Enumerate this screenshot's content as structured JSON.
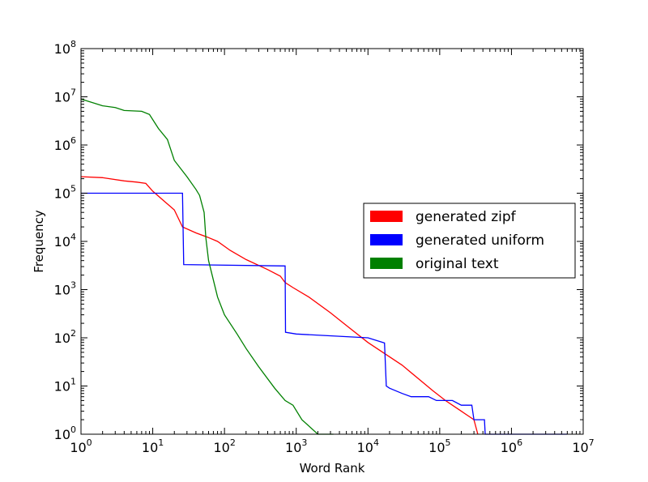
{
  "chart_data": {
    "type": "line",
    "xlabel": "Word Rank",
    "ylabel": "Frequency",
    "xscale": "log",
    "yscale": "log",
    "xlim": [
      1,
      10000000
    ],
    "ylim": [
      1,
      100000000
    ],
    "grid": false,
    "legend_placement": "center-right",
    "x_ticks": [
      {
        "base": "10",
        "exp": "0",
        "value": 1
      },
      {
        "base": "10",
        "exp": "1",
        "value": 10
      },
      {
        "base": "10",
        "exp": "2",
        "value": 100
      },
      {
        "base": "10",
        "exp": "3",
        "value": 1000
      },
      {
        "base": "10",
        "exp": "4",
        "value": 10000
      },
      {
        "base": "10",
        "exp": "5",
        "value": 100000
      },
      {
        "base": "10",
        "exp": "6",
        "value": 1000000
      },
      {
        "base": "10",
        "exp": "7",
        "value": 10000000
      }
    ],
    "y_ticks": [
      {
        "base": "10",
        "exp": "0",
        "value": 1
      },
      {
        "base": "10",
        "exp": "1",
        "value": 10
      },
      {
        "base": "10",
        "exp": "2",
        "value": 100
      },
      {
        "base": "10",
        "exp": "3",
        "value": 1000
      },
      {
        "base": "10",
        "exp": "4",
        "value": 10000
      },
      {
        "base": "10",
        "exp": "5",
        "value": 100000
      },
      {
        "base": "10",
        "exp": "6",
        "value": 1000000
      },
      {
        "base": "10",
        "exp": "7",
        "value": 10000000
      },
      {
        "base": "10",
        "exp": "8",
        "value": 100000000
      }
    ],
    "series": [
      {
        "name": "generated zipf",
        "color": "#ff0000",
        "points": [
          [
            1,
            220000
          ],
          [
            2,
            210000
          ],
          [
            4,
            180000
          ],
          [
            6,
            170000
          ],
          [
            8,
            160000
          ],
          [
            10,
            110000
          ],
          [
            15,
            65000
          ],
          [
            20,
            45000
          ],
          [
            26,
            20000
          ],
          [
            40,
            15000
          ],
          [
            60,
            12000
          ],
          [
            80,
            10000
          ],
          [
            120,
            6500
          ],
          [
            200,
            4200
          ],
          [
            400,
            2600
          ],
          [
            600,
            1900
          ],
          [
            700,
            1400
          ],
          [
            900,
            1100
          ],
          [
            1500,
            700
          ],
          [
            3000,
            330
          ],
          [
            5000,
            180
          ],
          [
            10000,
            80
          ],
          [
            30000,
            27
          ],
          [
            80000,
            8
          ],
          [
            120000,
            5
          ],
          [
            150000,
            4
          ],
          [
            200000,
            3
          ],
          [
            300000,
            2
          ],
          [
            340000,
            1
          ]
        ]
      },
      {
        "name": "generated uniform",
        "color": "#0000ff",
        "points": [
          [
            1,
            100000
          ],
          [
            26,
            100000
          ],
          [
            27,
            3300
          ],
          [
            700,
            3100
          ],
          [
            710,
            130
          ],
          [
            1000,
            120
          ],
          [
            10000,
            100
          ],
          [
            17000,
            78
          ],
          [
            18000,
            10
          ],
          [
            20000,
            9
          ],
          [
            30000,
            7
          ],
          [
            40000,
            6
          ],
          [
            70000,
            6
          ],
          [
            90000,
            5
          ],
          [
            150000,
            5
          ],
          [
            200000,
            4
          ],
          [
            280000,
            4
          ],
          [
            300000,
            2
          ],
          [
            420000,
            2
          ],
          [
            430000,
            1
          ],
          [
            6000000,
            1
          ]
        ]
      },
      {
        "name": "original text",
        "color": "#008000",
        "points": [
          [
            1,
            9000000
          ],
          [
            2,
            6500000
          ],
          [
            3,
            6000000
          ],
          [
            4,
            5200000
          ],
          [
            7,
            5000000
          ],
          [
            9,
            4300000
          ],
          [
            12,
            2200000
          ],
          [
            16,
            1300000
          ],
          [
            20,
            480000
          ],
          [
            30,
            220000
          ],
          [
            40,
            120000
          ],
          [
            45,
            90000
          ],
          [
            52,
            40000
          ],
          [
            55,
            12000
          ],
          [
            60,
            4000
          ],
          [
            80,
            700
          ],
          [
            100,
            300
          ],
          [
            150,
            120
          ],
          [
            200,
            60
          ],
          [
            300,
            25
          ],
          [
            500,
            9
          ],
          [
            700,
            5
          ],
          [
            900,
            4
          ],
          [
            1200,
            2
          ],
          [
            2000,
            1
          ],
          [
            3300,
            1
          ]
        ]
      }
    ]
  }
}
